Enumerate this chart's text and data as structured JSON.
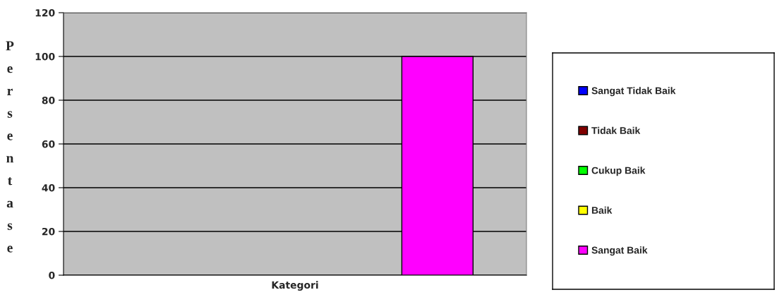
{
  "chart_data": {
    "type": "bar",
    "ylabel": "Persentase",
    "categories": [
      "Kategori"
    ],
    "series": [
      {
        "name": "Sangat Tidak Baik",
        "color": "#0000ff",
        "values": [
          0
        ]
      },
      {
        "name": "Tidak Baik",
        "color": "#800000",
        "values": [
          0
        ]
      },
      {
        "name": "Cukup Baik",
        "color": "#00ff00",
        "values": [
          0
        ]
      },
      {
        "name": "Baik",
        "color": "#ffff00",
        "values": [
          0
        ]
      },
      {
        "name": "Sangat Baik",
        "color": "#ff00ff",
        "values": [
          100
        ]
      }
    ],
    "ylim": [
      0,
      120
    ],
    "yticks": [
      0,
      20,
      40,
      60,
      80,
      100,
      120
    ],
    "grid": "y",
    "legend": "right"
  }
}
